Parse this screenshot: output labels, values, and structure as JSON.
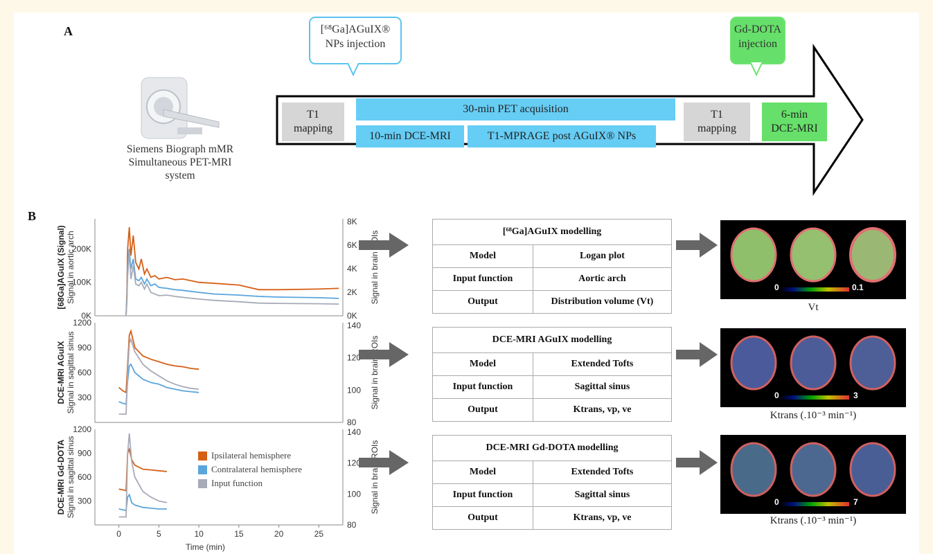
{
  "panel_a": {
    "letter": "A",
    "scanner_caption": [
      "Siemens Biograph mMR",
      "Simultaneous PET-MRI",
      "system"
    ],
    "callout_agux": [
      "[⁶⁸Ga]AGuIX®",
      "NPs injection"
    ],
    "callout_gd": [
      "Gd-DOTA",
      "injection"
    ],
    "t1_left": [
      "T1",
      "mapping"
    ],
    "pet": "30-min PET acquisition",
    "dce10": "10-min DCE-MRI",
    "mprage": "T1-MPRAGE post AGuIX® NPs",
    "t1_right": [
      "T1",
      "mapping"
    ],
    "dce6": [
      "6-min",
      "DCE-MRI"
    ],
    "colors": {
      "gray": "#d6d6d6",
      "blue": "#66cdf5",
      "green": "#66e06a"
    }
  },
  "panel_b": {
    "letter": "B",
    "x_axis_label": "Time (min)",
    "legend": [
      {
        "label": "Ipsilateral hemisphere",
        "color": "#d65f16"
      },
      {
        "label": "Contralateral hemisphere",
        "color": "#5aa5dc"
      },
      {
        "label": "Input function",
        "color": "#a7abb8"
      }
    ],
    "tables": [
      {
        "title": "[⁶⁸Ga]AGuIX modelling",
        "rows": [
          [
            "Model",
            "Logan plot"
          ],
          [
            "Input function",
            "Aortic arch"
          ],
          [
            "Output",
            "Distribution volume (Vt)"
          ]
        ]
      },
      {
        "title": "DCE-MRI AGuIX modelling",
        "rows": [
          [
            "Model",
            "Extended Tofts"
          ],
          [
            "Input function",
            "Sagittal sinus"
          ],
          [
            "Output",
            "Ktrans, vp, ve"
          ]
        ]
      },
      {
        "title": "DCE-MRI Gd-DOTA modelling",
        "rows": [
          [
            "Model",
            "Extended Tofts"
          ],
          [
            "Input function",
            "Sagittal sinus"
          ],
          [
            "Output",
            "Ktrans, vp, ve"
          ]
        ]
      }
    ],
    "maps": [
      {
        "scale_min": "0",
        "scale_max": "0.1",
        "caption": "Vt"
      },
      {
        "scale_min": "0",
        "scale_max": "3",
        "caption": "Ktrans (.10⁻³ min⁻¹)"
      },
      {
        "scale_min": "0",
        "scale_max": "7",
        "caption": "Ktrans (.10⁻³ min⁻¹)"
      }
    ]
  },
  "chart_data": [
    {
      "type": "line",
      "ylabel": "[68Ga]AGuIX (Signal)",
      "ylabel2": "Signal in aortic arch",
      "y2label": "Signal in brain ROIs",
      "yticks": [
        "0K",
        "100K",
        "200K"
      ],
      "y2ticks": [
        "0K",
        "2K",
        "4K",
        "6K",
        "8K"
      ],
      "xlim": [
        -3,
        28
      ],
      "series": [
        {
          "name": "Ipsilateral hemisphere",
          "color": "#d65f16",
          "x": [
            0.9,
            1.0,
            1.1,
            1.3,
            1.5,
            1.8,
            2.1,
            2.5,
            2.8,
            3.2,
            3.5,
            4,
            4.5,
            5,
            6,
            7,
            8,
            10,
            12,
            15,
            17.5,
            20,
            25,
            27.5
          ],
          "y": [
            0,
            70000,
            200000,
            265000,
            180000,
            240000,
            160000,
            140000,
            170000,
            125000,
            140000,
            115000,
            120000,
            110000,
            115000,
            108000,
            110000,
            100000,
            97000,
            92000,
            78000,
            78000,
            80000,
            82000
          ]
        },
        {
          "name": "Contralateral hemisphere",
          "color": "#5aa5dc",
          "x": [
            0.9,
            1.0,
            1.1,
            1.3,
            1.5,
            1.8,
            2.1,
            2.5,
            2.8,
            3.2,
            3.5,
            4,
            4.5,
            5,
            6,
            7,
            8,
            10,
            12,
            15,
            17.5,
            20,
            25,
            27.5
          ],
          "y": [
            0,
            50000,
            150000,
            200000,
            140000,
            170000,
            110000,
            105000,
            115000,
            95000,
            110000,
            90000,
            95000,
            85000,
            82000,
            78000,
            76000,
            70000,
            65000,
            62000,
            58000,
            56000,
            54000,
            52000
          ]
        },
        {
          "name": "Input function",
          "color": "#a7abb8",
          "x": [
            0.9,
            1.0,
            1.1,
            1.3,
            1.5,
            1.8,
            2.1,
            2.5,
            2.8,
            3.2,
            3.5,
            4,
            4.5,
            5,
            6,
            7,
            8,
            10,
            12,
            15,
            17.5,
            20,
            25,
            27.5
          ],
          "y": [
            0,
            40000,
            120000,
            190000,
            110000,
            150000,
            95000,
            90000,
            100000,
            80000,
            95000,
            70000,
            65000,
            60000,
            62000,
            58000,
            55000,
            50000,
            46000,
            42000,
            38000,
            37000,
            36000,
            35000
          ]
        }
      ]
    },
    {
      "type": "line",
      "ylabel": "DCE-MRI AGuIX",
      "ylabel2": "Signal in sagittal sinus",
      "y2label": "Signal in brain ROIs",
      "yticks": [
        "300",
        "600",
        "900",
        "1200"
      ],
      "y2ticks": [
        "80",
        "100",
        "120",
        "140"
      ],
      "xlim": [
        -3,
        28
      ],
      "series": [
        {
          "name": "Ipsilateral hemisphere",
          "color": "#d65f16",
          "x": [
            0,
            0.5,
            0.9,
            1.1,
            1.3,
            1.5,
            2,
            3,
            4,
            5,
            6,
            7,
            8,
            9,
            10
          ],
          "y": [
            420,
            380,
            360,
            700,
            1050,
            1100,
            900,
            800,
            760,
            730,
            700,
            680,
            670,
            650,
            640
          ]
        },
        {
          "name": "Contralateral hemisphere",
          "color": "#5aa5dc",
          "x": [
            0,
            0.5,
            0.9,
            1.1,
            1.3,
            1.5,
            2,
            3,
            4,
            5,
            6,
            7,
            8,
            9,
            10
          ],
          "y": [
            250,
            230,
            220,
            500,
            680,
            700,
            600,
            520,
            480,
            460,
            420,
            400,
            380,
            370,
            360
          ]
        },
        {
          "name": "Input function",
          "color": "#a7abb8",
          "x": [
            0,
            0.5,
            0.9,
            1.1,
            1.3,
            1.5,
            2,
            3,
            4,
            5,
            6,
            7,
            8,
            9,
            10
          ],
          "y": [
            100,
            100,
            100,
            600,
            950,
            1000,
            850,
            700,
            620,
            560,
            500,
            460,
            430,
            410,
            400
          ]
        }
      ]
    },
    {
      "type": "line",
      "ylabel": "DCE-MRI Gd-DOTA",
      "ylabel2": "Signal in sagittal sinus",
      "y2label": "Signal in brain ROIs",
      "yticks": [
        "300",
        "600",
        "900",
        "1200"
      ],
      "y2ticks": [
        "80",
        "100",
        "120",
        "140"
      ],
      "xticks": [
        "0",
        "5",
        "10",
        "15",
        "20",
        "25"
      ],
      "xlim": [
        -3,
        28
      ],
      "series": [
        {
          "name": "Ipsilateral hemisphere",
          "color": "#d65f16",
          "x": [
            0,
            0.5,
            0.9,
            1.1,
            1.3,
            1.6,
            2,
            3,
            4,
            5,
            6
          ],
          "y": [
            450,
            440,
            430,
            900,
            950,
            820,
            750,
            700,
            690,
            680,
            670
          ]
        },
        {
          "name": "Contralateral hemisphere",
          "color": "#5aa5dc",
          "x": [
            0,
            0.5,
            0.9,
            1.1,
            1.3,
            1.6,
            2,
            3,
            4,
            5,
            6
          ],
          "y": [
            200,
            190,
            180,
            350,
            380,
            280,
            250,
            220,
            210,
            200,
            200
          ]
        },
        {
          "name": "Input function",
          "color": "#a7abb8",
          "x": [
            0,
            0.5,
            0.9,
            1.1,
            1.3,
            1.6,
            2,
            3,
            4,
            5,
            6
          ],
          "y": [
            100,
            100,
            100,
            900,
            1150,
            800,
            600,
            420,
            350,
            300,
            280
          ]
        }
      ]
    }
  ]
}
